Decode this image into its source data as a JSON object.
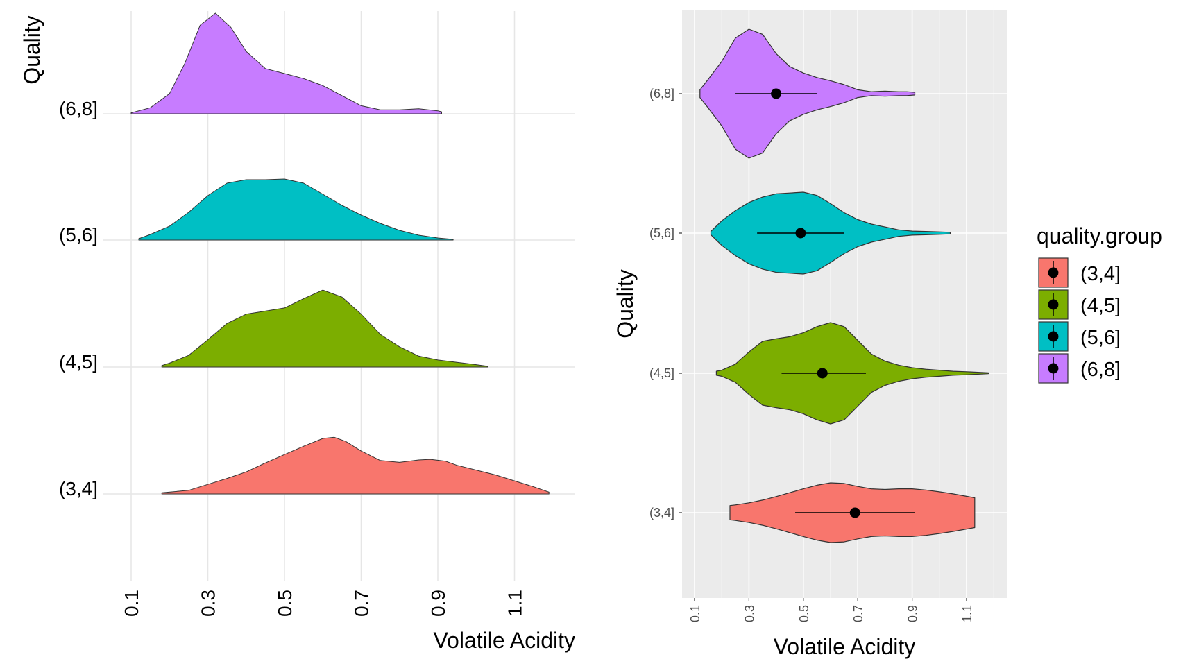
{
  "colors": {
    "g34": "#F8766D",
    "g45": "#7CAE00",
    "g56": "#00BFC4",
    "g68": "#C77CFF",
    "panel_bg": "#EBEBEB",
    "grid_light": "#E6E6E6",
    "grid_on_panel": "#FFFFFF",
    "outline": "#333333",
    "text": "#000000",
    "tick_text": "#4D4D4D"
  },
  "chart_data": [
    {
      "type": "area",
      "subtype": "ridgeline-density",
      "ylabel": "Quality",
      "xlabel": "Volatile Acidity",
      "xlim": [
        0.1,
        1.2
      ],
      "x_ticks": [
        "0.1",
        "0.3",
        "0.5",
        "0.7",
        "0.9",
        "1.1"
      ],
      "y_categories": [
        "(6,8]",
        "(5,6]",
        "(4,5]",
        "(3,4]"
      ],
      "grid": true,
      "series": [
        {
          "name": "(6,8]",
          "color_key": "g68",
          "points": [
            [
              0.1,
              0.01
            ],
            [
              0.15,
              0.06
            ],
            [
              0.2,
              0.2
            ],
            [
              0.24,
              0.5
            ],
            [
              0.28,
              0.88
            ],
            [
              0.32,
              1.0
            ],
            [
              0.36,
              0.86
            ],
            [
              0.4,
              0.62
            ],
            [
              0.45,
              0.45
            ],
            [
              0.5,
              0.4
            ],
            [
              0.55,
              0.35
            ],
            [
              0.6,
              0.28
            ],
            [
              0.65,
              0.18
            ],
            [
              0.7,
              0.08
            ],
            [
              0.75,
              0.04
            ],
            [
              0.8,
              0.04
            ],
            [
              0.85,
              0.05
            ],
            [
              0.9,
              0.03
            ],
            [
              0.91,
              0.02
            ]
          ]
        },
        {
          "name": "(5,6]",
          "color_key": "g56",
          "points": [
            [
              0.12,
              0.02
            ],
            [
              0.15,
              0.08
            ],
            [
              0.2,
              0.2
            ],
            [
              0.25,
              0.4
            ],
            [
              0.3,
              0.64
            ],
            [
              0.35,
              0.82
            ],
            [
              0.4,
              0.87
            ],
            [
              0.45,
              0.87
            ],
            [
              0.5,
              0.88
            ],
            [
              0.55,
              0.82
            ],
            [
              0.6,
              0.66
            ],
            [
              0.65,
              0.5
            ],
            [
              0.7,
              0.36
            ],
            [
              0.75,
              0.24
            ],
            [
              0.8,
              0.14
            ],
            [
              0.85,
              0.07
            ],
            [
              0.9,
              0.03
            ],
            [
              0.94,
              0.01
            ]
          ]
        },
        {
          "name": "(4,5]",
          "color_key": "g45",
          "points": [
            [
              0.18,
              0.02
            ],
            [
              0.2,
              0.05
            ],
            [
              0.25,
              0.15
            ],
            [
              0.3,
              0.35
            ],
            [
              0.35,
              0.56
            ],
            [
              0.4,
              0.68
            ],
            [
              0.45,
              0.72
            ],
            [
              0.5,
              0.76
            ],
            [
              0.55,
              0.88
            ],
            [
              0.6,
              0.99
            ],
            [
              0.65,
              0.9
            ],
            [
              0.7,
              0.68
            ],
            [
              0.75,
              0.42
            ],
            [
              0.8,
              0.26
            ],
            [
              0.85,
              0.14
            ],
            [
              0.9,
              0.09
            ],
            [
              0.95,
              0.06
            ],
            [
              1.0,
              0.03
            ],
            [
              1.03,
              0.01
            ]
          ]
        },
        {
          "name": "(3,4]",
          "color_key": "g34",
          "points": [
            [
              0.18,
              0.02
            ],
            [
              0.25,
              0.06
            ],
            [
              0.3,
              0.16
            ],
            [
              0.35,
              0.26
            ],
            [
              0.4,
              0.37
            ],
            [
              0.45,
              0.52
            ],
            [
              0.5,
              0.66
            ],
            [
              0.55,
              0.8
            ],
            [
              0.6,
              0.93
            ],
            [
              0.63,
              0.95
            ],
            [
              0.66,
              0.88
            ],
            [
              0.7,
              0.72
            ],
            [
              0.75,
              0.56
            ],
            [
              0.8,
              0.53
            ],
            [
              0.85,
              0.57
            ],
            [
              0.88,
              0.58
            ],
            [
              0.92,
              0.55
            ],
            [
              0.95,
              0.48
            ],
            [
              1.0,
              0.4
            ],
            [
              1.05,
              0.32
            ],
            [
              1.1,
              0.22
            ],
            [
              1.15,
              0.12
            ],
            [
              1.19,
              0.03
            ]
          ]
        }
      ]
    },
    {
      "type": "area",
      "subtype": "violin-with-pointrange",
      "ylabel": "Quality",
      "xlabel": "Volatile Acidity",
      "xlim": [
        0.09,
        1.19
      ],
      "x_ticks": [
        "0.1",
        "0.3",
        "0.5",
        "0.7",
        "0.9",
        "1.1"
      ],
      "y_categories": [
        "(6,8]",
        "(5,6]",
        "(4,5]",
        "(3,4]"
      ],
      "grid": true,
      "legend": {
        "title": "quality.group",
        "placement": "right",
        "entries": [
          "(3,4]",
          "(4,5]",
          "(5,6]",
          "(6,8]"
        ]
      },
      "series": [
        {
          "name": "(6,8]",
          "color_key": "g68",
          "mean": 0.4,
          "lower": 0.25,
          "upper": 0.55,
          "profile": [
            [
              0.12,
              0.06
            ],
            [
              0.15,
              0.22
            ],
            [
              0.2,
              0.5
            ],
            [
              0.25,
              0.86
            ],
            [
              0.3,
              1.0
            ],
            [
              0.35,
              0.92
            ],
            [
              0.4,
              0.62
            ],
            [
              0.45,
              0.42
            ],
            [
              0.5,
              0.32
            ],
            [
              0.55,
              0.25
            ],
            [
              0.6,
              0.2
            ],
            [
              0.65,
              0.14
            ],
            [
              0.7,
              0.06
            ],
            [
              0.75,
              0.03
            ],
            [
              0.8,
              0.04
            ],
            [
              0.85,
              0.03
            ],
            [
              0.88,
              0.03
            ],
            [
              0.91,
              0.02
            ]
          ]
        },
        {
          "name": "(5,6]",
          "color_key": "g56",
          "mean": 0.49,
          "lower": 0.33,
          "upper": 0.65,
          "profile": [
            [
              0.16,
              0.04
            ],
            [
              0.2,
              0.3
            ],
            [
              0.25,
              0.55
            ],
            [
              0.3,
              0.75
            ],
            [
              0.35,
              0.88
            ],
            [
              0.4,
              0.96
            ],
            [
              0.45,
              0.98
            ],
            [
              0.5,
              1.0
            ],
            [
              0.55,
              0.92
            ],
            [
              0.6,
              0.72
            ],
            [
              0.65,
              0.5
            ],
            [
              0.7,
              0.33
            ],
            [
              0.75,
              0.22
            ],
            [
              0.8,
              0.15
            ],
            [
              0.85,
              0.08
            ],
            [
              0.9,
              0.05
            ],
            [
              0.95,
              0.04
            ],
            [
              1.0,
              0.03
            ],
            [
              1.04,
              0.02
            ]
          ]
        },
        {
          "name": "(4,5]",
          "color_key": "g45",
          "mean": 0.57,
          "lower": 0.42,
          "upper": 0.73,
          "profile": [
            [
              0.18,
              0.04
            ],
            [
              0.2,
              0.06
            ],
            [
              0.25,
              0.18
            ],
            [
              0.3,
              0.42
            ],
            [
              0.35,
              0.63
            ],
            [
              0.4,
              0.68
            ],
            [
              0.45,
              0.72
            ],
            [
              0.5,
              0.8
            ],
            [
              0.55,
              0.92
            ],
            [
              0.6,
              1.0
            ],
            [
              0.65,
              0.92
            ],
            [
              0.7,
              0.65
            ],
            [
              0.75,
              0.38
            ],
            [
              0.8,
              0.24
            ],
            [
              0.85,
              0.16
            ],
            [
              0.9,
              0.11
            ],
            [
              0.95,
              0.08
            ],
            [
              1.0,
              0.06
            ],
            [
              1.05,
              0.04
            ],
            [
              1.1,
              0.03
            ],
            [
              1.18,
              0.01
            ]
          ]
        },
        {
          "name": "(3,4]",
          "color_key": "g34",
          "mean": 0.69,
          "lower": 0.47,
          "upper": 0.91,
          "profile": [
            [
              0.23,
              0.24
            ],
            [
              0.25,
              0.26
            ],
            [
              0.3,
              0.33
            ],
            [
              0.35,
              0.42
            ],
            [
              0.4,
              0.54
            ],
            [
              0.45,
              0.67
            ],
            [
              0.5,
              0.8
            ],
            [
              0.55,
              0.92
            ],
            [
              0.6,
              1.0
            ],
            [
              0.65,
              0.98
            ],
            [
              0.7,
              0.88
            ],
            [
              0.75,
              0.8
            ],
            [
              0.8,
              0.78
            ],
            [
              0.85,
              0.8
            ],
            [
              0.9,
              0.8
            ],
            [
              0.95,
              0.76
            ],
            [
              1.0,
              0.7
            ],
            [
              1.05,
              0.63
            ],
            [
              1.1,
              0.55
            ],
            [
              1.13,
              0.5
            ]
          ]
        }
      ]
    }
  ]
}
